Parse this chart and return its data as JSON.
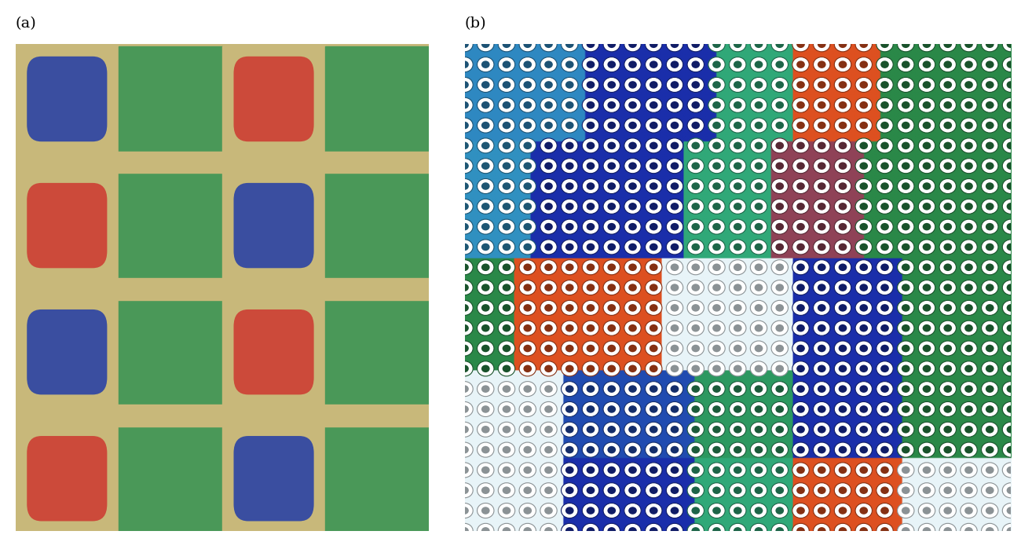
{
  "fig_width": 13.0,
  "fig_height": 7.04,
  "bg_color": "#ffffff",
  "label_a": "(a)",
  "label_b": "(b)",
  "label_fontsize": 14,
  "panel_a": {
    "sand_color": "#c8b87a",
    "green_color": "#4a9858",
    "red_color": "#cc4a3a",
    "blue_color": "#3a4ea0"
  },
  "panel_b": {
    "c_darkblue": "#1a2eaa",
    "c_medblue": "#2244cc",
    "c_cyan": "#3090c0",
    "c_teal": "#30a878",
    "c_green": "#2a8848",
    "c_orange": "#dd5020",
    "c_lightorange": "#e07840",
    "c_white": "#e8f4f8",
    "c_lightblue": "#90c8e0"
  }
}
